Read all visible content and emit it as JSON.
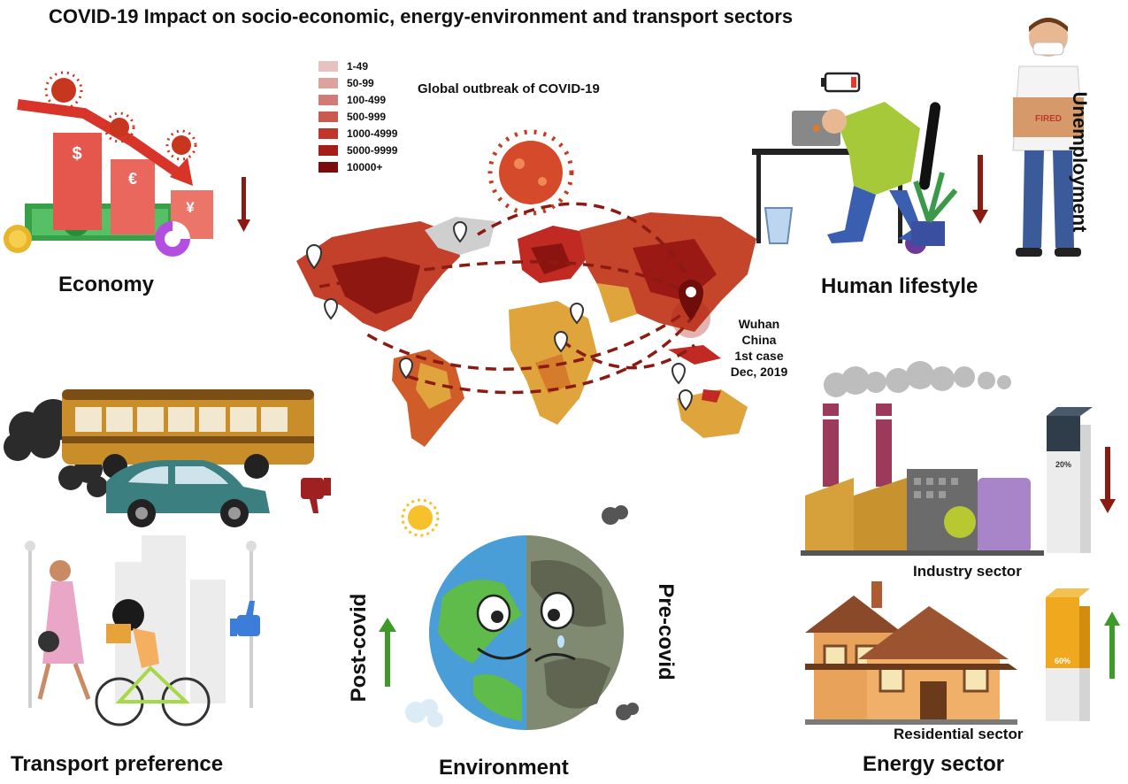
{
  "title": "COVID-19 Impact on socio-economic, energy-environment and transport sectors",
  "map": {
    "heading": "Global outbreak of COVID-19",
    "legend": [
      {
        "range": "1-49",
        "color": "#e6c3c0"
      },
      {
        "range": "50-99",
        "color": "#dba39e"
      },
      {
        "range": "100-499",
        "color": "#d17b74"
      },
      {
        "range": "500-999",
        "color": "#c95a50"
      },
      {
        "range": "1000-4999",
        "color": "#c2352b"
      },
      {
        "range": "5000-9999",
        "color": "#a51d17"
      },
      {
        "range": "10000+",
        "color": "#7a0d0b"
      }
    ],
    "origin": {
      "line1": "Wuhan",
      "line2": "China",
      "line3": "1st case",
      "line4": "Dec, 2019"
    }
  },
  "sections": {
    "economy": "Economy",
    "human_lifestyle": "Human lifestyle",
    "unemployment": "Unemployment",
    "transport": "Transport preference",
    "environment": "Environment",
    "post_covid": "Post-covid",
    "pre_covid": "Pre-covid",
    "energy": "Energy sector",
    "industry": "Industry sector",
    "residential": "Residential sector"
  },
  "economy_currency": {
    "dollar": "$",
    "euro": "€",
    "yen": "¥"
  },
  "energy_bars": {
    "industry_pct": "20%",
    "residential_pct": "60%"
  },
  "box_label": "FIRED",
  "colors": {
    "trend_down": "#8b1a12",
    "trend_up": "#3f9a2a",
    "map_base": "#e0a43c"
  }
}
